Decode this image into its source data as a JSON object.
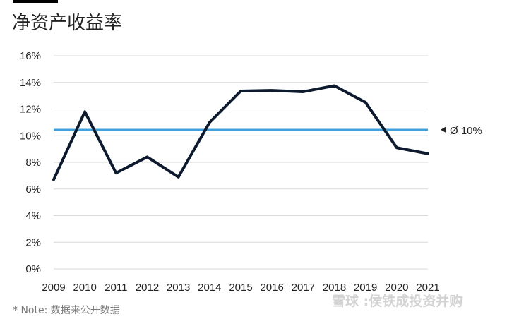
{
  "chart_data": {
    "type": "line",
    "title": "净资产收益率",
    "categories": [
      "2009",
      "2010",
      "2011",
      "2012",
      "2013",
      "2014",
      "2015",
      "2016",
      "2017",
      "2018",
      "2019",
      "2020",
      "2021"
    ],
    "series": [
      {
        "values": [
          6.7,
          11.8,
          7.2,
          8.4,
          6.9,
          11.0,
          13.35,
          13.4,
          13.3,
          13.75,
          12.5,
          9.1,
          8.65
        ]
      }
    ],
    "reference_line": {
      "value": 10.45,
      "label": "Ø 10%"
    },
    "ylim": [
      0,
      16
    ],
    "yticks": [
      0,
      2,
      4,
      6,
      8,
      10,
      12,
      14,
      16
    ],
    "ytick_labels": [
      "0%",
      "2%",
      "4%",
      "6%",
      "8%",
      "10%",
      "12%",
      "14%",
      "16%"
    ],
    "grid": "horizontal",
    "colors": {
      "line": "#0d1a2e",
      "reference": "#3fa0dc",
      "grid": "#d9d9d9"
    }
  },
  "note": "* Note:  数据来公开数据",
  "watermark": "雪球 :侯铁成投资并购"
}
